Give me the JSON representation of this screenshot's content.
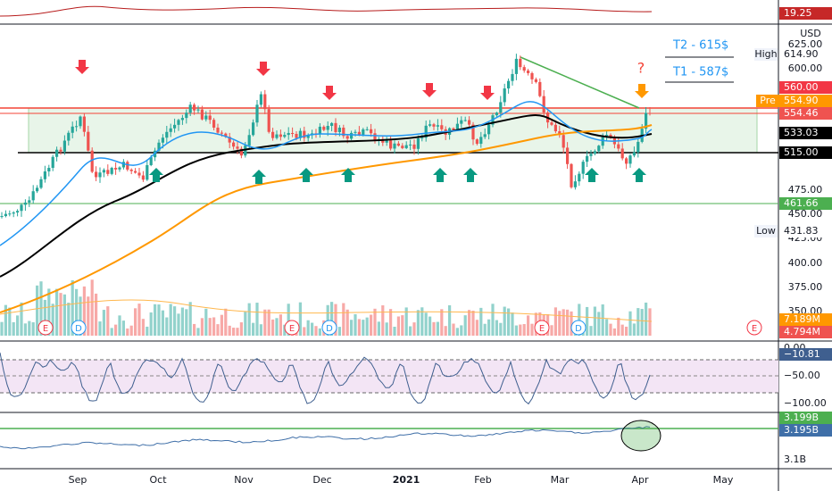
{
  "price_axis": {
    "currency": "USD",
    "labels": [
      "625.00",
      "600.00",
      "475.00",
      "450.00",
      "425.00",
      "400.00",
      "375.00",
      "350.00"
    ]
  },
  "time_axis": [
    "Sep",
    "Oct",
    "Nov",
    "Dec",
    "2021",
    "Feb",
    "Mar",
    "Apr",
    "May"
  ],
  "annotations": {
    "t2": "T2 - 615$",
    "t1": "T1 - 587$",
    "question": "?"
  },
  "badges": {
    "top_pane": "19.25",
    "high_tag": "High",
    "high": "614.90",
    "level_560": "560.00",
    "pre_tag": "Pre",
    "pre": "554.90",
    "last": "554.46",
    "ma_a": "533.03",
    "level_515": "515.00",
    "level_461": "461.66",
    "low_tag": "Low",
    "low": "431.83",
    "vol_avg": "7.189M",
    "vol": "4.794M",
    "rsi_0": "0.00",
    "rsi_value": "−10.81",
    "rsi_50": "−50.00",
    "rsi_100": "−100.00",
    "obv_a": "3.199B",
    "obv_b": "3.195B",
    "obv_axis": "3.1B"
  },
  "events": [
    "E",
    "D",
    "E",
    "D",
    "E",
    "D",
    "E"
  ]
}
